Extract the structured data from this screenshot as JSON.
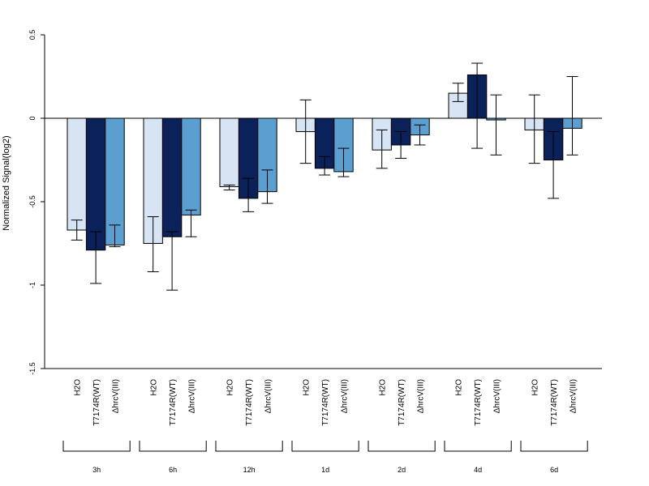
{
  "chart_data": {
    "type": "bar",
    "ylabel": "Normalized Signal(log2)",
    "xlabel": "",
    "ylim": [
      -1.5,
      0.5
    ],
    "yticks": [
      {
        "value": 0.5,
        "label": "0.5"
      },
      {
        "value": 0,
        "label": "0"
      },
      {
        "value": -0.5,
        "label": "-0.5"
      },
      {
        "value": -1,
        "label": "-1"
      },
      {
        "value": -1.5,
        "label": "-1.5"
      }
    ],
    "categories": [
      "H2O",
      "T7174R(WT)",
      "ΔhrcV(III)"
    ],
    "colors": [
      "#d6e4f4",
      "#0a2259",
      "#5b9fd0"
    ],
    "groups": [
      {
        "label": "3h",
        "values": [
          -0.67,
          -0.79,
          -0.76
        ],
        "err_low": [
          -0.73,
          -0.99,
          -0.77
        ],
        "err_high": [
          -0.61,
          -0.68,
          -0.64
        ]
      },
      {
        "label": "6h",
        "values": [
          -0.75,
          -0.71,
          -0.58
        ],
        "err_low": [
          -0.92,
          -1.03,
          -0.71
        ],
        "err_high": [
          -0.59,
          -0.68,
          -0.55
        ]
      },
      {
        "label": "12h",
        "values": [
          -0.41,
          -0.48,
          -0.44
        ],
        "err_low": [
          -0.43,
          -0.56,
          -0.51
        ],
        "err_high": [
          -0.4,
          -0.36,
          -0.31
        ]
      },
      {
        "label": "1d",
        "values": [
          -0.08,
          -0.3,
          -0.32
        ],
        "err_low": [
          -0.27,
          -0.34,
          -0.35
        ],
        "err_high": [
          0.11,
          -0.23,
          -0.18
        ]
      },
      {
        "label": "2d",
        "values": [
          -0.19,
          -0.16,
          -0.1
        ],
        "err_low": [
          -0.3,
          -0.24,
          -0.16
        ],
        "err_high": [
          -0.07,
          -0.08,
          -0.04
        ]
      },
      {
        "label": "4d",
        "values": [
          0.15,
          0.26,
          -0.01
        ],
        "err_low": [
          0.1,
          -0.18,
          -0.22
        ],
        "err_high": [
          0.21,
          0.33,
          0.14
        ]
      },
      {
        "label": "6d",
        "values": [
          -0.07,
          -0.25,
          -0.06
        ],
        "err_low": [
          -0.27,
          -0.48,
          -0.22
        ],
        "err_high": [
          0.14,
          -0.08,
          0.25
        ]
      }
    ]
  }
}
